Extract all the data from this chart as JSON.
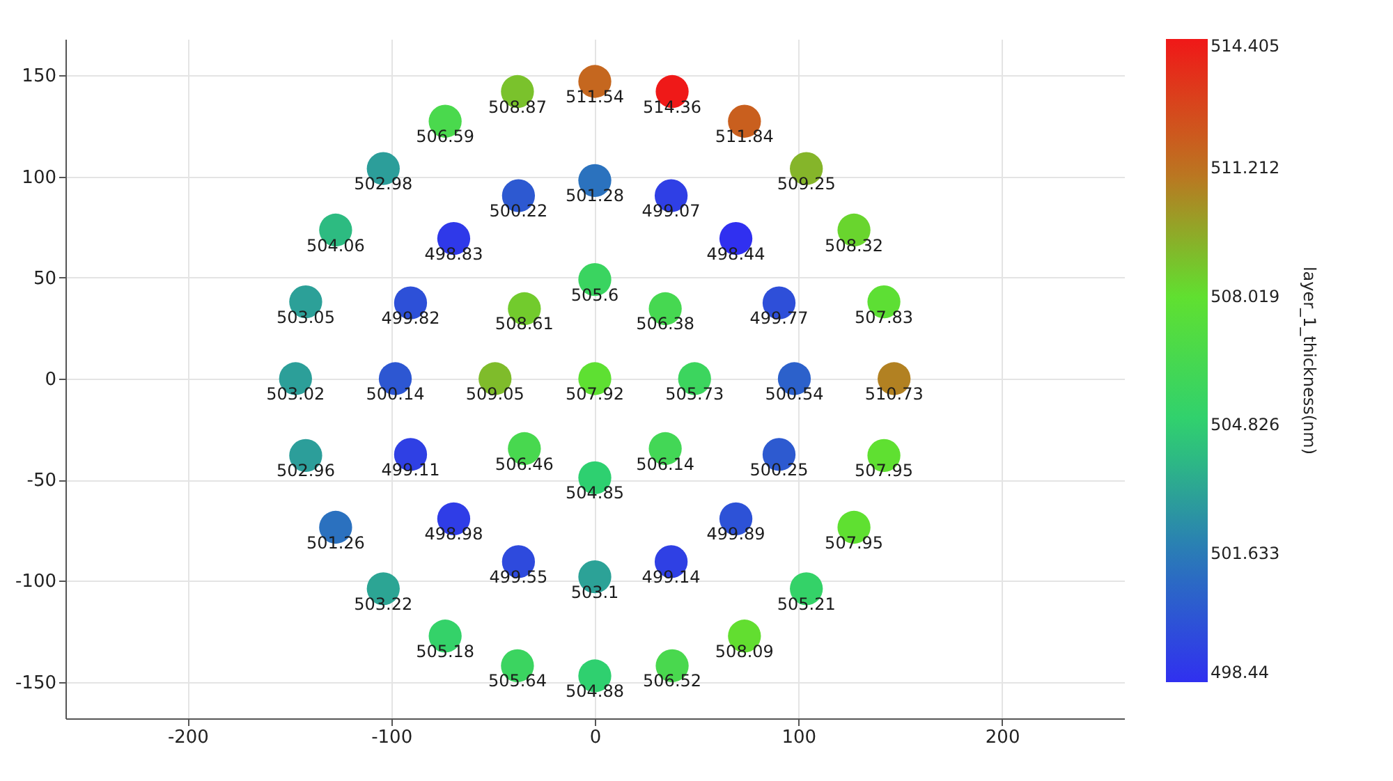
{
  "chart_data": {
    "type": "scatter",
    "x": [
      0,
      0,
      34.6,
      49,
      34.6,
      0,
      -34.6,
      -49,
      -34.6,
      0,
      37.5,
      69.3,
      90.5,
      98,
      90.5,
      69.3,
      37.5,
      0,
      -37.5,
      -69.3,
      -90.5,
      -98,
      -90.5,
      -69.3,
      -37.5,
      0,
      38,
      73.5,
      103.9,
      127.3,
      142,
      147,
      142,
      127.3,
      103.9,
      73.5,
      38,
      0,
      -38,
      -73.5,
      -103.9,
      -127.3,
      -142,
      -147,
      -142,
      -127.3,
      -103.9,
      -73.5,
      -38
    ],
    "values": [
      0,
      49,
      34.6,
      0,
      -34.6,
      -49,
      -34.6,
      0,
      34.6,
      98,
      90.5,
      69.3,
      37.5,
      0,
      -37.5,
      -69.3,
      -90.5,
      -98,
      -90.5,
      -69.3,
      -37.5,
      0,
      37.5,
      69.3,
      90.5,
      147,
      142,
      127.3,
      103.9,
      73.5,
      38,
      0,
      -38,
      -73.5,
      -103.9,
      -127.3,
      -142,
      -147,
      -142,
      -127.3,
      -103.9,
      -73.5,
      -38,
      0,
      38,
      73.5,
      103.9,
      127.3,
      142
    ],
    "cvalues": [
      507.92,
      505.6,
      506.38,
      505.73,
      506.14,
      504.85,
      506.46,
      509.05,
      508.61,
      501.28,
      499.07,
      498.44,
      499.77,
      500.54,
      500.25,
      499.89,
      499.14,
      503.1,
      499.55,
      498.98,
      499.11,
      500.14,
      499.82,
      498.83,
      500.22,
      511.54,
      514.36,
      511.84,
      509.25,
      508.32,
      507.83,
      510.73,
      507.95,
      507.95,
      505.21,
      508.09,
      506.52,
      504.88,
      505.64,
      505.18,
      503.22,
      501.26,
      502.96,
      503.02,
      503.05,
      504.06,
      502.98,
      506.59,
      508.87
    ],
    "annotations": [
      {
        "text": "507.92",
        "x": 0,
        "y": 0
      },
      {
        "text": "505.6",
        "x": 0,
        "y": 49
      },
      {
        "text": "506.38",
        "x": 34.6,
        "y": 34.6
      },
      {
        "text": "505.73",
        "x": 49,
        "y": 0
      },
      {
        "text": "506.14",
        "x": 34.6,
        "y": -34.6
      },
      {
        "text": "504.85",
        "x": 0,
        "y": -49
      },
      {
        "text": "506.46",
        "x": -34.6,
        "y": -34.6
      },
      {
        "text": "509.05",
        "x": -49,
        "y": 0
      },
      {
        "text": "508.61",
        "x": -34.6,
        "y": 34.6
      },
      {
        "text": "501.28",
        "x": 0,
        "y": 98
      },
      {
        "text": "499.07",
        "x": 37.5,
        "y": 90.5
      },
      {
        "text": "498.44",
        "x": 69.3,
        "y": 69.3
      },
      {
        "text": "499.77",
        "x": 90.5,
        "y": 37.5
      },
      {
        "text": "500.54",
        "x": 98,
        "y": 0
      },
      {
        "text": "500.25",
        "x": 90.5,
        "y": -37.5
      },
      {
        "text": "499.89",
        "x": 69.3,
        "y": -69.3
      },
      {
        "text": "499.14",
        "x": 37.5,
        "y": -90.5
      },
      {
        "text": "503.1",
        "x": 0,
        "y": -98
      },
      {
        "text": "499.55",
        "x": -37.5,
        "y": -90.5
      },
      {
        "text": "498.98",
        "x": -69.3,
        "y": -69.3
      },
      {
        "text": "499.11",
        "x": -90.5,
        "y": -37.5
      },
      {
        "text": "500.14",
        "x": -98,
        "y": 0
      },
      {
        "text": "499.82",
        "x": -90.5,
        "y": 37.5
      },
      {
        "text": "498.83",
        "x": -69.3,
        "y": 69.3
      },
      {
        "text": "500.22",
        "x": -37.5,
        "y": 90.5
      },
      {
        "text": "511.54",
        "x": 0,
        "y": 147
      },
      {
        "text": "514.36",
        "x": 38,
        "y": 142
      },
      {
        "text": "511.84",
        "x": 73.5,
        "y": 127.3
      },
      {
        "text": "509.25",
        "x": 103.9,
        "y": 103.9
      },
      {
        "text": "508.32",
        "x": 127.3,
        "y": 73.5
      },
      {
        "text": "507.83",
        "x": 142,
        "y": 38
      },
      {
        "text": "510.73",
        "x": 147,
        "y": 0
      },
      {
        "text": "507.95",
        "x": 142,
        "y": -38
      },
      {
        "text": "507.95",
        "x": 127.3,
        "y": -73.5
      },
      {
        "text": "505.21",
        "x": 103.9,
        "y": -103.9
      },
      {
        "text": "508.09",
        "x": 73.5,
        "y": -127.3
      },
      {
        "text": "506.52",
        "x": 38,
        "y": -142
      },
      {
        "text": "504.88",
        "x": 0,
        "y": -147
      },
      {
        "text": "505.64",
        "x": -38,
        "y": -142
      },
      {
        "text": "505.18",
        "x": -73.5,
        "y": -127.3
      },
      {
        "text": "503.22",
        "x": -103.9,
        "y": -103.9
      },
      {
        "text": "501.26",
        "x": -127.3,
        "y": -73.5
      },
      {
        "text": "502.96",
        "x": -142,
        "y": -38
      },
      {
        "text": "503.02",
        "x": -147,
        "y": 0
      },
      {
        "text": "503.05",
        "x": -142,
        "y": 38
      },
      {
        "text": "504.06",
        "x": -127.3,
        "y": 73.5
      },
      {
        "text": "502.98",
        "x": -103.9,
        "y": 103.9
      },
      {
        "text": "506.59",
        "x": -73.5,
        "y": 127.3
      },
      {
        "text": "508.87",
        "x": -38,
        "y": 142
      }
    ],
    "xlim": [
      -260,
      260
    ],
    "ylim": [
      -168,
      168
    ],
    "xticks": [
      -200,
      -100,
      0,
      100,
      200
    ],
    "yticks": [
      -150,
      -100,
      -50,
      0,
      50,
      100,
      150
    ],
    "clim": [
      498.44,
      514.405
    ],
    "cticks": [
      498.44,
      501.633,
      504.826,
      508.019,
      511.212,
      514.405
    ],
    "clabel": "layer_1_thickness(nm)",
    "grid": true,
    "marker": "circle"
  }
}
